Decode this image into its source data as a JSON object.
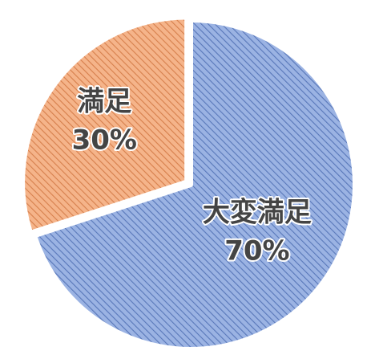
{
  "chart_data": {
    "type": "pie",
    "start_angle_deg": 0,
    "direction": "clockwise",
    "slices": [
      {
        "label": "大変満足",
        "value": 70,
        "value_label": "70%",
        "color": "#9bb3e3",
        "hatch_color": "#5877b9"
      },
      {
        "label": "満足",
        "value": 30,
        "value_label": "30%",
        "color": "#f5b48a",
        "hatch_color": "#d67f4c"
      }
    ]
  }
}
